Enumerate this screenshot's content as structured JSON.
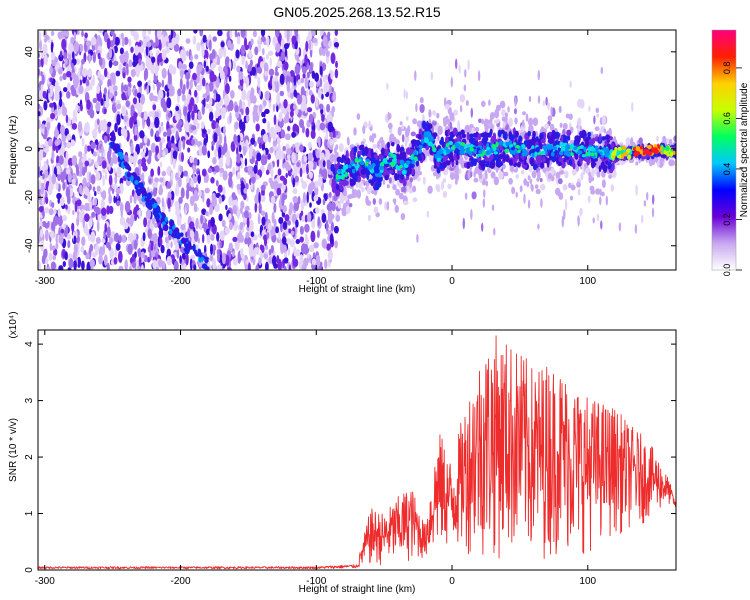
{
  "title": "GN05.2025.268.13.52.R15",
  "chart_data": [
    {
      "type": "heatmap",
      "title": "GN05.2025.268.13.52.R15",
      "xlabel": "Height of straight line (km)",
      "ylabel": "Frequency (Hz)",
      "xlim": [
        -305,
        165
      ],
      "ylim": [
        -50,
        49
      ],
      "xticks": [
        -300,
        -200,
        -100,
        0,
        100
      ],
      "yticks": [
        -40,
        -20,
        0,
        20,
        40
      ],
      "colorbar": {
        "label": "Normalized spectral amplitude",
        "range": [
          0.0,
          0.95
        ],
        "ticks": [
          0.0,
          0.2,
          0.4,
          0.6,
          0.8
        ],
        "tick_labels": [
          "0.0",
          "0.2",
          "0.4",
          "0.6",
          "0.8"
        ],
        "colors": [
          "#ffffff",
          "#c8a8f0",
          "#6a00d8",
          "#0000ff",
          "#00c8ff",
          "#00ff60",
          "#c8ff00",
          "#ffd000",
          "#ff2000",
          "#ff0080"
        ]
      },
      "features": {
        "noise_region_x": [
          -305,
          -85
        ],
        "signal_track": [
          {
            "x": -85,
            "y": -12
          },
          {
            "x": -75,
            "y": -8
          },
          {
            "x": -65,
            "y": -5
          },
          {
            "x": -55,
            "y": -10
          },
          {
            "x": -45,
            "y": -4
          },
          {
            "x": -35,
            "y": -8
          },
          {
            "x": -25,
            "y": -2
          },
          {
            "x": -18,
            "y": 6
          },
          {
            "x": -10,
            "y": -3
          },
          {
            "x": 0,
            "y": 1
          },
          {
            "x": 20,
            "y": -1
          },
          {
            "x": 40,
            "y": 1
          },
          {
            "x": 60,
            "y": -1
          },
          {
            "x": 80,
            "y": 0
          },
          {
            "x": 100,
            "y": -1
          },
          {
            "x": 120,
            "y": -2
          },
          {
            "x": 140,
            "y": -1
          },
          {
            "x": 160,
            "y": -1
          }
        ],
        "diagonal_track": [
          {
            "x": -252,
            "y": 5
          },
          {
            "x": -240,
            "y": -8
          },
          {
            "x": -228,
            "y": -18
          },
          {
            "x": -215,
            "y": -28
          },
          {
            "x": -195,
            "y": -40
          },
          {
            "x": -180,
            "y": -48
          }
        ]
      }
    },
    {
      "type": "line",
      "xlabel": "Height of straight line (km)",
      "ylabel": "SNR (10 * v/v)",
      "yscale_label": "(x10⁴)",
      "color": "#ee2c2c",
      "xlim": [
        -305,
        165
      ],
      "ylim": [
        0,
        4.25
      ],
      "xticks": [
        -300,
        -200,
        -100,
        0,
        100
      ],
      "yticks": [
        0,
        1,
        2,
        3,
        4
      ],
      "envelope": {
        "x": [
          -305,
          -100,
          -70,
          -60,
          -50,
          -40,
          -30,
          -20,
          -10,
          0,
          10,
          20,
          30,
          40,
          50,
          60,
          70,
          80,
          90,
          100,
          110,
          120,
          130,
          140,
          150,
          160,
          165
        ],
        "min": [
          0.02,
          0.02,
          0.03,
          0.05,
          0.08,
          0.08,
          0.15,
          0.2,
          0.3,
          0.35,
          0.3,
          0.2,
          0.15,
          0.2,
          0.2,
          0.15,
          0.2,
          0.25,
          0.25,
          0.3,
          0.5,
          0.6,
          0.7,
          0.8,
          1.0,
          1.15,
          1.1
        ],
        "max": [
          0.06,
          0.06,
          0.1,
          1.1,
          1.0,
          1.3,
          1.5,
          0.8,
          2.5,
          1.9,
          3.0,
          3.8,
          4.2,
          4.1,
          3.9,
          3.6,
          3.7,
          3.6,
          3.3,
          3.1,
          3.0,
          2.9,
          2.6,
          2.4,
          2.1,
          1.6,
          1.15
        ]
      }
    }
  ]
}
